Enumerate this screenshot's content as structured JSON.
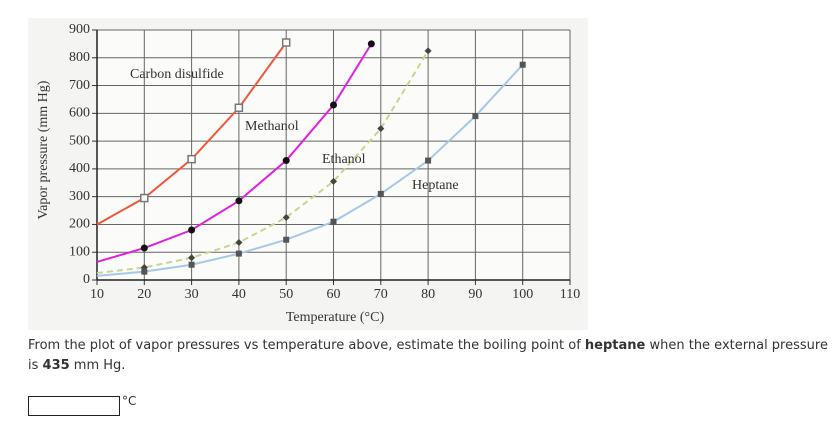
{
  "chart_data": {
    "type": "line",
    "ylabel": "Vapor pressure (mm Hg)",
    "xlabel": "Temperature (°C)",
    "xlim": [
      10,
      110
    ],
    "xticks": [
      10,
      20,
      30,
      40,
      50,
      60,
      70,
      80,
      90,
      100,
      110
    ],
    "ylim": [
      0,
      900
    ],
    "yticks": [
      0,
      100,
      200,
      300,
      400,
      500,
      600,
      700,
      800,
      900
    ],
    "grid": true,
    "series": [
      {
        "name": "Carbon disulfide",
        "color": "#f0583a",
        "marker": "square-open",
        "line_style": "solid",
        "x": [
          10,
          20,
          30,
          40,
          50
        ],
        "values": [
          200,
          295,
          435,
          620,
          855
        ]
      },
      {
        "name": "Methanol",
        "color": "#e020e0",
        "marker": "circle",
        "line_style": "solid",
        "x": [
          10,
          20,
          30,
          40,
          50,
          60,
          68
        ],
        "values": [
          65,
          115,
          180,
          285,
          430,
          630,
          850
        ]
      },
      {
        "name": "Ethanol",
        "color": "#c4d88c",
        "marker": "diamond",
        "line_style": "dashed",
        "x": [
          10,
          20,
          30,
          40,
          50,
          60,
          70,
          80
        ],
        "values": [
          25,
          45,
          80,
          135,
          225,
          355,
          545,
          825
        ]
      },
      {
        "name": "Heptane",
        "color": "#a8c8ea",
        "marker": "square",
        "line_style": "solid",
        "x": [
          10,
          20,
          30,
          40,
          50,
          60,
          70,
          80,
          90,
          100
        ],
        "values": [
          15,
          30,
          55,
          95,
          145,
          210,
          310,
          430,
          590,
          775
        ]
      }
    ]
  },
  "question": {
    "text_before": "From the plot of vapor pressures vs temperature above, estimate the boiling point of ",
    "bold_substance": "heptane",
    "text_middle": " when the external pressure is ",
    "bold_pressure": "435",
    "text_after": " mm Hg."
  },
  "answer_unit": "°C"
}
